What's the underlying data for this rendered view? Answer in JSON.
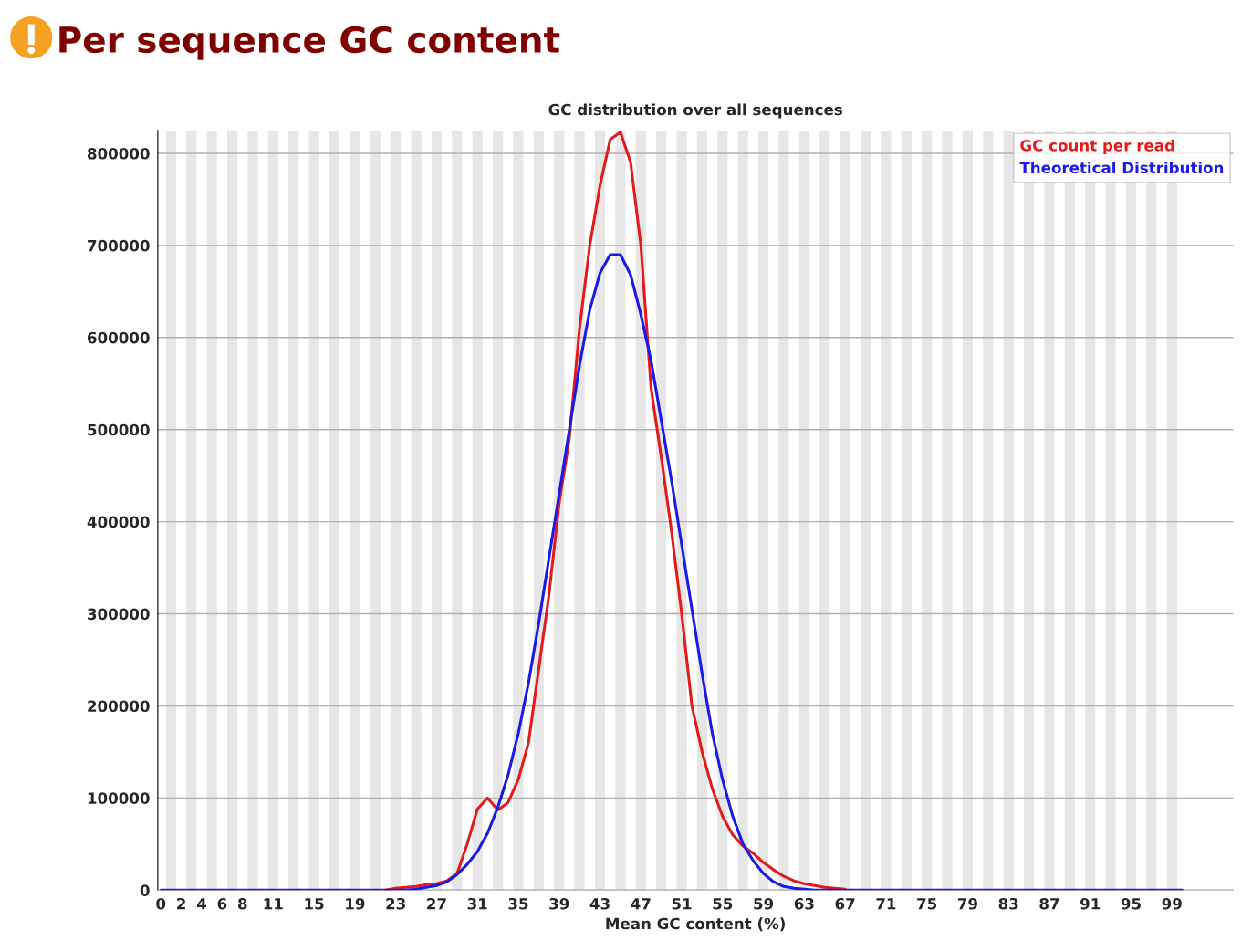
{
  "chart_data": {
    "type": "line",
    "title": "Per sequence GC content",
    "subtitle": "GC distribution over all sequences",
    "xlabel": "Mean GC content (%)",
    "x": [
      0,
      1,
      2,
      3,
      4,
      5,
      6,
      7,
      8,
      9,
      10,
      11,
      12,
      13,
      14,
      15,
      16,
      17,
      18,
      19,
      20,
      21,
      22,
      23,
      24,
      25,
      26,
      27,
      28,
      29,
      30,
      31,
      32,
      33,
      34,
      35,
      36,
      37,
      38,
      39,
      40,
      41,
      42,
      43,
      44,
      45,
      46,
      47,
      48,
      49,
      50,
      51,
      52,
      53,
      54,
      55,
      56,
      57,
      58,
      59,
      60,
      61,
      62,
      63,
      64,
      65,
      66,
      67,
      68,
      69,
      70,
      71,
      72,
      73,
      74,
      75,
      76,
      77,
      78,
      79,
      80,
      81,
      82,
      83,
      84,
      85,
      86,
      87,
      88,
      89,
      90,
      91,
      92,
      93,
      94,
      95,
      96,
      97,
      98,
      99,
      100
    ],
    "series": [
      {
        "name": "GC count per read",
        "color": "#e41a1a",
        "values": [
          null,
          null,
          null,
          null,
          null,
          null,
          null,
          null,
          null,
          null,
          null,
          null,
          null,
          null,
          null,
          null,
          null,
          null,
          null,
          null,
          null,
          null,
          0,
          2000,
          3000,
          4000,
          6000,
          7000,
          10000,
          18000,
          50000,
          88000,
          100000,
          87000,
          95000,
          120000,
          160000,
          240000,
          320000,
          420000,
          490000,
          610000,
          700000,
          765000,
          815000,
          823000,
          790000,
          700000,
          545000,
          470000,
          390000,
          300000,
          200000,
          150000,
          110000,
          80000,
          60000,
          48000,
          40000,
          30000,
          22000,
          15000,
          10000,
          7000,
          5000,
          3000,
          2000,
          1000,
          null,
          null,
          null,
          null,
          null,
          null,
          null,
          null,
          null,
          null,
          null,
          null,
          null,
          null,
          null,
          null,
          null,
          null,
          null,
          null,
          null,
          null,
          null,
          null,
          null,
          null,
          null,
          null,
          null,
          null,
          null,
          null,
          null
        ]
      },
      {
        "name": "Theoretical Distribution",
        "color": "#1a1ae6",
        "values": [
          0,
          0,
          0,
          0,
          0,
          0,
          0,
          0,
          0,
          0,
          0,
          0,
          0,
          0,
          0,
          0,
          0,
          0,
          0,
          0,
          0,
          0,
          0,
          0,
          0,
          1000,
          3000,
          5000,
          9000,
          17000,
          28000,
          42000,
          62000,
          90000,
          125000,
          170000,
          225000,
          290000,
          360000,
          430000,
          500000,
          570000,
          630000,
          670000,
          690000,
          690000,
          668000,
          625000,
          575000,
          510000,
          445000,
          375000,
          305000,
          235000,
          170000,
          120000,
          80000,
          50000,
          32000,
          18000,
          9000,
          4000,
          2000,
          1000,
          0,
          0,
          0,
          0,
          0,
          0,
          0,
          0,
          0,
          0,
          0,
          0,
          0,
          0,
          0,
          0,
          0,
          0,
          0,
          0,
          0,
          0,
          0,
          0,
          0,
          0,
          0,
          0,
          0,
          0,
          0,
          0,
          0,
          0,
          0,
          0,
          0
        ]
      }
    ],
    "xlim": [
      -0.3,
      105
    ],
    "ylim": [
      0,
      825000
    ],
    "xticks": [
      0,
      2,
      4,
      6,
      8,
      11,
      15,
      19,
      23,
      27,
      31,
      35,
      39,
      43,
      47,
      51,
      55,
      59,
      63,
      67,
      71,
      75,
      79,
      83,
      87,
      91,
      95,
      99
    ],
    "yticks": [
      0,
      100000,
      200000,
      300000,
      400000,
      500000,
      600000,
      700000,
      800000
    ],
    "grid": "y",
    "legend": "top right",
    "marker": "none",
    "line_style": "solid",
    "bands": [
      {
        "axis": "x",
        "from": 0.5,
        "to": 1.5,
        "color": "#e6e6e6"
      },
      {
        "axis": "x",
        "from": 2.5,
        "to": 3.5,
        "color": "#e6e6e6"
      },
      {
        "axis": "x",
        "from": 4.5,
        "to": 5.5,
        "color": "#e6e6e6"
      },
      {
        "axis": "x",
        "from": 6.5,
        "to": 7.5,
        "color": "#e6e6e6"
      },
      {
        "axis": "x",
        "from": 8.5,
        "to": 9.5,
        "color": "#e6e6e6"
      },
      {
        "axis": "x",
        "from": 10.5,
        "to": 11.5,
        "color": "#e6e6e6"
      },
      {
        "axis": "x",
        "from": 12.5,
        "to": 13.5,
        "color": "#e6e6e6"
      },
      {
        "axis": "x",
        "from": 14.5,
        "to": 15.5,
        "color": "#e6e6e6"
      },
      {
        "axis": "x",
        "from": 16.5,
        "to": 17.5,
        "color": "#e6e6e6"
      },
      {
        "axis": "x",
        "from": 18.5,
        "to": 19.5,
        "color": "#e6e6e6"
      },
      {
        "axis": "x",
        "from": 20.5,
        "to": 21.5,
        "color": "#e6e6e6"
      },
      {
        "axis": "x",
        "from": 22.5,
        "to": 23.5,
        "color": "#e6e6e6"
      },
      {
        "axis": "x",
        "from": 24.5,
        "to": 25.5,
        "color": "#e6e6e6"
      },
      {
        "axis": "x",
        "from": 26.5,
        "to": 27.5,
        "color": "#e6e6e6"
      },
      {
        "axis": "x",
        "from": 28.5,
        "to": 29.5,
        "color": "#e6e6e6"
      },
      {
        "axis": "x",
        "from": 30.5,
        "to": 31.5,
        "color": "#e6e6e6"
      },
      {
        "axis": "x",
        "from": 32.5,
        "to": 33.5,
        "color": "#e6e6e6"
      },
      {
        "axis": "x",
        "from": 34.5,
        "to": 35.5,
        "color": "#e6e6e6"
      },
      {
        "axis": "x",
        "from": 36.5,
        "to": 37.5,
        "color": "#e6e6e6"
      },
      {
        "axis": "x",
        "from": 38.5,
        "to": 39.5,
        "color": "#e6e6e6"
      },
      {
        "axis": "x",
        "from": 40.5,
        "to": 41.5,
        "color": "#e6e6e6"
      },
      {
        "axis": "x",
        "from": 42.5,
        "to": 43.5,
        "color": "#e6e6e6"
      },
      {
        "axis": "x",
        "from": 44.5,
        "to": 45.5,
        "color": "#e6e6e6"
      },
      {
        "axis": "x",
        "from": 46.5,
        "to": 47.5,
        "color": "#e6e6e6"
      },
      {
        "axis": "x",
        "from": 48.5,
        "to": 49.5,
        "color": "#e6e6e6"
      },
      {
        "axis": "x",
        "from": 50.5,
        "to": 51.5,
        "color": "#e6e6e6"
      },
      {
        "axis": "x",
        "from": 52.5,
        "to": 53.5,
        "color": "#e6e6e6"
      },
      {
        "axis": "x",
        "from": 54.5,
        "to": 55.5,
        "color": "#e6e6e6"
      },
      {
        "axis": "x",
        "from": 56.5,
        "to": 57.5,
        "color": "#e6e6e6"
      },
      {
        "axis": "x",
        "from": 58.5,
        "to": 59.5,
        "color": "#e6e6e6"
      },
      {
        "axis": "x",
        "from": 60.5,
        "to": 61.5,
        "color": "#e6e6e6"
      },
      {
        "axis": "x",
        "from": 62.5,
        "to": 63.5,
        "color": "#e6e6e6"
      },
      {
        "axis": "x",
        "from": 64.5,
        "to": 65.5,
        "color": "#e6e6e6"
      },
      {
        "axis": "x",
        "from": 66.5,
        "to": 67.5,
        "color": "#e6e6e6"
      },
      {
        "axis": "x",
        "from": 68.5,
        "to": 69.5,
        "color": "#e6e6e6"
      },
      {
        "axis": "x",
        "from": 70.5,
        "to": 71.5,
        "color": "#e6e6e6"
      },
      {
        "axis": "x",
        "from": 72.5,
        "to": 73.5,
        "color": "#e6e6e6"
      },
      {
        "axis": "x",
        "from": 74.5,
        "to": 75.5,
        "color": "#e6e6e6"
      },
      {
        "axis": "x",
        "from": 76.5,
        "to": 77.5,
        "color": "#e6e6e6"
      },
      {
        "axis": "x",
        "from": 78.5,
        "to": 79.5,
        "color": "#e6e6e6"
      },
      {
        "axis": "x",
        "from": 80.5,
        "to": 81.5,
        "color": "#e6e6e6"
      },
      {
        "axis": "x",
        "from": 82.5,
        "to": 83.5,
        "color": "#e6e6e6"
      },
      {
        "axis": "x",
        "from": 84.5,
        "to": 85.5,
        "color": "#e6e6e6"
      },
      {
        "axis": "x",
        "from": 86.5,
        "to": 87.5,
        "color": "#e6e6e6"
      },
      {
        "axis": "x",
        "from": 88.5,
        "to": 89.5,
        "color": "#e6e6e6"
      },
      {
        "axis": "x",
        "from": 90.5,
        "to": 91.5,
        "color": "#e6e6e6"
      },
      {
        "axis": "x",
        "from": 92.5,
        "to": 93.5,
        "color": "#e6e6e6"
      },
      {
        "axis": "x",
        "from": 94.5,
        "to": 95.5,
        "color": "#e6e6e6"
      },
      {
        "axis": "x",
        "from": 96.5,
        "to": 97.5,
        "color": "#e6e6e6"
      },
      {
        "axis": "x",
        "from": 98.5,
        "to": 99.5,
        "color": "#e6e6e6"
      }
    ]
  }
}
